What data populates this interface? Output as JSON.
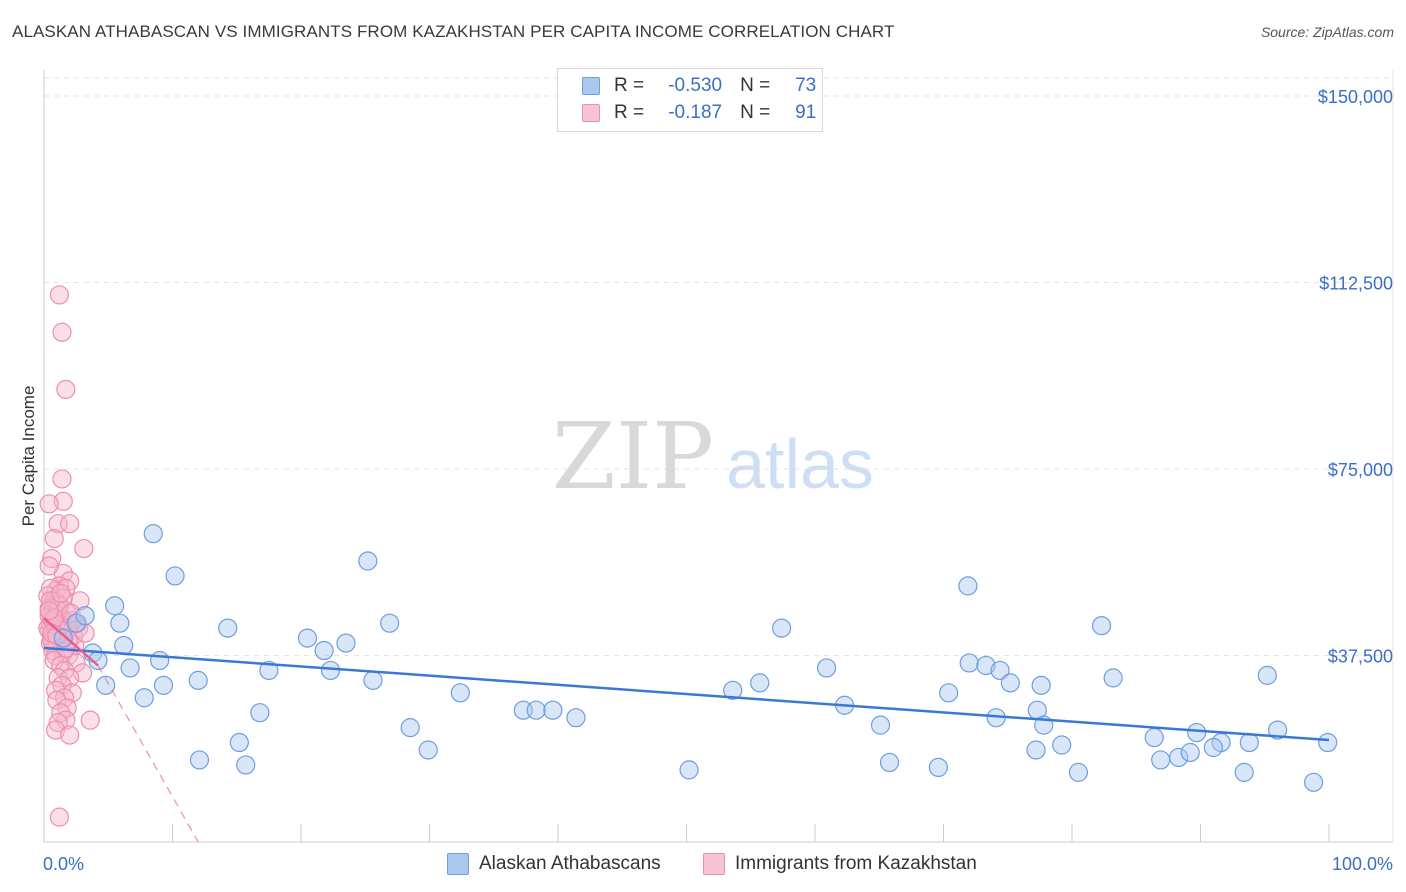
{
  "title": "ALASKAN ATHABASCAN VS IMMIGRANTS FROM KAZAKHSTAN PER CAPITA INCOME CORRELATION CHART",
  "source": "Source: ZipAtlas.com",
  "watermark": {
    "zip": "ZIP",
    "atlas": "atlas"
  },
  "colors": {
    "blue": "#3a78d6",
    "blue_fill": "#a9c7ef",
    "pink": "#ee5a8a",
    "pink_fill": "#f6b7cb",
    "axis_text": "#3a6fc4",
    "grid": "#e3e3e3"
  },
  "legend": {
    "rows": [
      {
        "r_label": "R =",
        "r_value": "-0.530",
        "n_label": "N =",
        "n_value": "73"
      },
      {
        "r_label": "R =",
        "r_value": "-0.187",
        "n_label": "N =",
        "n_value": "91"
      }
    ]
  },
  "bottom_legend": {
    "series1": "Alaskan Athabascans",
    "series2": "Immigrants from Kazakhstan"
  },
  "chart_data": {
    "type": "scatter",
    "title": "ALASKAN ATHABASCAN VS IMMIGRANTS FROM KAZAKHSTAN PER CAPITA INCOME CORRELATION CHART",
    "xlabel": "",
    "ylabel": "Per Capita Income",
    "xlim": [
      0,
      100
    ],
    "ylim": [
      0,
      154000
    ],
    "x_tick_labels": [
      "0.0%",
      "100.0%"
    ],
    "y_ticks": [
      37500,
      75000,
      112500,
      150000
    ],
    "y_tick_labels": [
      "$37,500",
      "$75,000",
      "$112,500",
      "$150,000"
    ],
    "series": [
      {
        "name": "Alaskan Athabascans",
        "color": "#3a78d6",
        "trend": {
          "x": [
            0,
            100
          ],
          "y": [
            39000,
            20500
          ]
        },
        "points": [
          [
            1.5,
            41000
          ],
          [
            2.5,
            44000
          ],
          [
            3.2,
            45500
          ],
          [
            3.8,
            38000
          ],
          [
            4.2,
            36500
          ],
          [
            4.8,
            31500
          ],
          [
            5.5,
            47500
          ],
          [
            5.9,
            44000
          ],
          [
            6.2,
            39500
          ],
          [
            6.7,
            35000
          ],
          [
            7.8,
            29000
          ],
          [
            8.5,
            62000
          ],
          [
            9.0,
            36500
          ],
          [
            9.3,
            31500
          ],
          [
            10.2,
            53500
          ],
          [
            12.0,
            32500
          ],
          [
            12.1,
            16500
          ],
          [
            14.3,
            43000
          ],
          [
            15.2,
            20000
          ],
          [
            15.7,
            15500
          ],
          [
            16.8,
            26000
          ],
          [
            17.5,
            34500
          ],
          [
            20.5,
            41000
          ],
          [
            21.8,
            38500
          ],
          [
            22.3,
            34500
          ],
          [
            23.5,
            40000
          ],
          [
            25.2,
            56500
          ],
          [
            25.6,
            32500
          ],
          [
            26.9,
            44000
          ],
          [
            28.5,
            23000
          ],
          [
            29.9,
            18500
          ],
          [
            32.4,
            30000
          ],
          [
            37.3,
            26500
          ],
          [
            38.3,
            26500
          ],
          [
            39.6,
            26500
          ],
          [
            41.4,
            25000
          ],
          [
            50.2,
            14500
          ],
          [
            53.6,
            30500
          ],
          [
            57.4,
            43000
          ],
          [
            60.9,
            35000
          ],
          [
            62.3,
            27500
          ],
          [
            65.1,
            23500
          ],
          [
            65.8,
            16000
          ],
          [
            69.6,
            15000
          ],
          [
            70.4,
            30000
          ],
          [
            71.9,
            51500
          ],
          [
            72.0,
            36000
          ],
          [
            73.3,
            35500
          ],
          [
            74.1,
            25000
          ],
          [
            74.4,
            34500
          ],
          [
            75.2,
            32000
          ],
          [
            77.3,
            26500
          ],
          [
            77.6,
            31500
          ],
          [
            77.2,
            18500
          ],
          [
            77.8,
            23500
          ],
          [
            79.2,
            19500
          ],
          [
            80.5,
            14000
          ],
          [
            82.3,
            43500
          ],
          [
            83.2,
            33000
          ],
          [
            86.4,
            21000
          ],
          [
            88.3,
            17000
          ],
          [
            89.2,
            18000
          ],
          [
            89.7,
            22000
          ],
          [
            91.6,
            20000
          ],
          [
            93.4,
            14000
          ],
          [
            93.8,
            20000
          ],
          [
            95.2,
            33500
          ],
          [
            96.0,
            22500
          ],
          [
            98.8,
            12000
          ],
          [
            99.9,
            20000
          ],
          [
            86.9,
            16500
          ],
          [
            91.0,
            19000
          ],
          [
            55.7,
            32000
          ]
        ]
      },
      {
        "name": "Immigrants from Kazakhstan",
        "color": "#ee5a8a",
        "trend": {
          "x": [
            0,
            4.2
          ],
          "y": [
            45000,
            35500
          ]
        },
        "trend_extension": {
          "x": [
            4.2,
            12.0
          ],
          "y": [
            35500,
            0
          ]
        },
        "points": [
          [
            1.2,
            110000
          ],
          [
            1.4,
            102500
          ],
          [
            1.7,
            91000
          ],
          [
            1.4,
            73000
          ],
          [
            1.5,
            68500
          ],
          [
            0.4,
            68000
          ],
          [
            1.1,
            64000
          ],
          [
            2.0,
            64000
          ],
          [
            0.8,
            61000
          ],
          [
            3.1,
            59000
          ],
          [
            0.6,
            57000
          ],
          [
            1.5,
            54000
          ],
          [
            0.4,
            55500
          ],
          [
            2.0,
            52500
          ],
          [
            1.2,
            51500
          ],
          [
            0.9,
            50500
          ],
          [
            0.5,
            51000
          ],
          [
            1.7,
            51000
          ],
          [
            0.3,
            49500
          ],
          [
            0.8,
            48500
          ],
          [
            2.8,
            48500
          ],
          [
            0.4,
            47000
          ],
          [
            1.0,
            47000
          ],
          [
            1.7,
            46500
          ],
          [
            0.5,
            46000
          ],
          [
            0.9,
            45500
          ],
          [
            1.4,
            45000
          ],
          [
            0.6,
            44500
          ],
          [
            1.1,
            44500
          ],
          [
            2.2,
            44500
          ],
          [
            0.5,
            43500
          ],
          [
            1.3,
            43500
          ],
          [
            1.9,
            43000
          ],
          [
            2.7,
            43000
          ],
          [
            0.4,
            42500
          ],
          [
            0.8,
            42000
          ],
          [
            1.6,
            42000
          ],
          [
            0.6,
            41000
          ],
          [
            1.2,
            41000
          ],
          [
            0.5,
            40000
          ],
          [
            1.0,
            39500
          ],
          [
            2.4,
            39500
          ],
          [
            0.7,
            38500
          ],
          [
            1.5,
            38000
          ],
          [
            0.9,
            37500
          ],
          [
            1.9,
            37500
          ],
          [
            0.8,
            36500
          ],
          [
            1.3,
            35500
          ],
          [
            2.5,
            36000
          ],
          [
            1.6,
            34500
          ],
          [
            3.0,
            34000
          ],
          [
            1.1,
            33000
          ],
          [
            2.0,
            33000
          ],
          [
            1.4,
            31500
          ],
          [
            0.9,
            30500
          ],
          [
            2.2,
            30000
          ],
          [
            1.6,
            29000
          ],
          [
            1.0,
            28500
          ],
          [
            1.8,
            27000
          ],
          [
            1.3,
            26000
          ],
          [
            1.7,
            24500
          ],
          [
            1.1,
            24000
          ],
          [
            3.6,
            24500
          ],
          [
            0.9,
            22500
          ],
          [
            2.0,
            21500
          ],
          [
            1.2,
            5000
          ],
          [
            0.5,
            44000
          ],
          [
            0.7,
            46000
          ],
          [
            1.0,
            48000
          ],
          [
            1.5,
            49000
          ],
          [
            0.3,
            43000
          ],
          [
            0.6,
            40500
          ],
          [
            1.8,
            44000
          ],
          [
            2.3,
            41500
          ],
          [
            0.4,
            45500
          ],
          [
            1.1,
            46500
          ],
          [
            0.9,
            43500
          ],
          [
            1.4,
            42500
          ],
          [
            0.7,
            44500
          ],
          [
            1.2,
            47500
          ],
          [
            0.5,
            48500
          ],
          [
            2.6,
            44000
          ],
          [
            3.2,
            42000
          ],
          [
            1.7,
            39000
          ],
          [
            0.8,
            45000
          ],
          [
            1.3,
            50000
          ],
          [
            2.1,
            46000
          ],
          [
            0.6,
            42000
          ],
          [
            1.9,
            40500
          ],
          [
            1.0,
            41500
          ],
          [
            0.4,
            46500
          ]
        ]
      }
    ]
  }
}
